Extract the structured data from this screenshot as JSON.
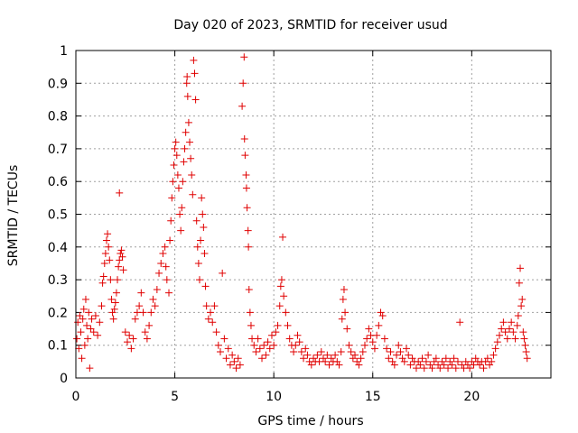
{
  "chart_data": {
    "type": "scatter",
    "title": "Day 020 of 2023, SRMTID for receiver usud",
    "xlabel": "GPS time / hours",
    "ylabel": "SRMTID / TECUs",
    "xlim": [
      0,
      24
    ],
    "ylim": [
      0,
      1
    ],
    "x_ticks": [
      0,
      5,
      10,
      15,
      20
    ],
    "y_ticks": [
      0,
      0.1,
      0.2,
      0.3,
      0.4,
      0.5,
      0.6,
      0.7,
      0.8,
      0.9,
      1
    ],
    "x_tick_labels": [
      "0",
      "5",
      "10",
      "15",
      "20"
    ],
    "y_tick_labels": [
      "0",
      "0.1",
      "0.2",
      "0.3",
      "0.4",
      "0.5",
      "0.6",
      "0.7",
      "0.8",
      "0.9",
      "1"
    ],
    "grid": true,
    "marker": "+",
    "marker_color": "#e00000",
    "series": [
      {
        "name": "SRMTID",
        "points": [
          [
            0.05,
            0.12
          ],
          [
            0.1,
            0.17
          ],
          [
            0.15,
            0.09
          ],
          [
            0.2,
            0.19
          ],
          [
            0.25,
            0.14
          ],
          [
            0.3,
            0.06
          ],
          [
            0.35,
            0.18
          ],
          [
            0.4,
            0.21
          ],
          [
            0.45,
            0.1
          ],
          [
            0.5,
            0.24
          ],
          [
            0.55,
            0.16
          ],
          [
            0.6,
            0.12
          ],
          [
            0.65,
            0.2
          ],
          [
            0.7,
            0.03
          ],
          [
            0.75,
            0.15
          ],
          [
            0.8,
            0.18
          ],
          [
            0.9,
            0.14
          ],
          [
            1.0,
            0.19
          ],
          [
            1.1,
            0.13
          ],
          [
            1.2,
            0.17
          ],
          [
            1.3,
            0.22
          ],
          [
            1.35,
            0.29
          ],
          [
            1.4,
            0.31
          ],
          [
            1.45,
            0.35
          ],
          [
            1.5,
            0.38
          ],
          [
            1.55,
            0.42
          ],
          [
            1.6,
            0.44
          ],
          [
            1.65,
            0.4
          ],
          [
            1.7,
            0.36
          ],
          [
            1.75,
            0.3
          ],
          [
            1.8,
            0.24
          ],
          [
            1.85,
            0.2
          ],
          [
            1.9,
            0.18
          ],
          [
            1.95,
            0.21
          ],
          [
            2.0,
            0.23
          ],
          [
            2.05,
            0.26
          ],
          [
            2.1,
            0.3
          ],
          [
            2.15,
            0.34
          ],
          [
            2.2,
            0.36
          ],
          [
            2.25,
            0.38
          ],
          [
            2.3,
            0.39
          ],
          [
            2.35,
            0.37
          ],
          [
            2.4,
            0.33
          ],
          [
            2.2,
            0.565
          ],
          [
            2.5,
            0.14
          ],
          [
            2.6,
            0.11
          ],
          [
            2.7,
            0.13
          ],
          [
            2.8,
            0.09
          ],
          [
            2.9,
            0.12
          ],
          [
            3.0,
            0.18
          ],
          [
            3.1,
            0.2
          ],
          [
            3.2,
            0.22
          ],
          [
            3.3,
            0.26
          ],
          [
            3.4,
            0.2
          ],
          [
            3.5,
            0.14
          ],
          [
            3.6,
            0.12
          ],
          [
            3.7,
            0.16
          ],
          [
            3.8,
            0.2
          ],
          [
            3.9,
            0.24
          ],
          [
            4.0,
            0.22
          ],
          [
            4.1,
            0.27
          ],
          [
            4.2,
            0.32
          ],
          [
            4.3,
            0.35
          ],
          [
            4.4,
            0.38
          ],
          [
            4.5,
            0.4
          ],
          [
            4.55,
            0.34
          ],
          [
            4.6,
            0.3
          ],
          [
            4.7,
            0.26
          ],
          [
            4.75,
            0.42
          ],
          [
            4.8,
            0.48
          ],
          [
            4.85,
            0.55
          ],
          [
            4.9,
            0.6
          ],
          [
            4.95,
            0.65
          ],
          [
            5.0,
            0.7
          ],
          [
            5.05,
            0.72
          ],
          [
            5.1,
            0.68
          ],
          [
            5.15,
            0.62
          ],
          [
            5.2,
            0.58
          ],
          [
            5.25,
            0.5
          ],
          [
            5.3,
            0.45
          ],
          [
            5.35,
            0.52
          ],
          [
            5.4,
            0.6
          ],
          [
            5.45,
            0.66
          ],
          [
            5.5,
            0.7
          ],
          [
            5.55,
            0.75
          ],
          [
            5.6,
            0.9
          ],
          [
            5.62,
            0.92
          ],
          [
            5.65,
            0.86
          ],
          [
            5.7,
            0.78
          ],
          [
            5.75,
            0.72
          ],
          [
            5.8,
            0.67
          ],
          [
            5.85,
            0.62
          ],
          [
            5.9,
            0.56
          ],
          [
            5.95,
            0.97
          ],
          [
            6.0,
            0.93
          ],
          [
            6.05,
            0.85
          ],
          [
            6.1,
            0.48
          ],
          [
            6.15,
            0.4
          ],
          [
            6.2,
            0.35
          ],
          [
            6.25,
            0.3
          ],
          [
            6.3,
            0.42
          ],
          [
            6.35,
            0.55
          ],
          [
            6.4,
            0.5
          ],
          [
            6.45,
            0.46
          ],
          [
            6.5,
            0.38
          ],
          [
            6.55,
            0.28
          ],
          [
            6.6,
            0.22
          ],
          [
            6.7,
            0.18
          ],
          [
            6.8,
            0.2
          ],
          [
            6.9,
            0.17
          ],
          [
            7.0,
            0.22
          ],
          [
            7.1,
            0.14
          ],
          [
            7.2,
            0.1
          ],
          [
            7.3,
            0.08
          ],
          [
            7.4,
            0.32
          ],
          [
            7.5,
            0.12
          ],
          [
            7.6,
            0.06
          ],
          [
            7.7,
            0.09
          ],
          [
            7.8,
            0.04
          ],
          [
            7.9,
            0.07
          ],
          [
            8.0,
            0.05
          ],
          [
            8.1,
            0.03
          ],
          [
            8.2,
            0.06
          ],
          [
            8.3,
            0.04
          ],
          [
            8.4,
            0.83
          ],
          [
            8.45,
            0.9
          ],
          [
            8.5,
            0.98
          ],
          [
            8.52,
            0.73
          ],
          [
            8.55,
            0.68
          ],
          [
            8.6,
            0.62
          ],
          [
            8.62,
            0.58
          ],
          [
            8.65,
            0.52
          ],
          [
            8.7,
            0.45
          ],
          [
            8.72,
            0.4
          ],
          [
            8.75,
            0.27
          ],
          [
            8.8,
            0.2
          ],
          [
            8.85,
            0.16
          ],
          [
            8.9,
            0.12
          ],
          [
            9.0,
            0.1
          ],
          [
            9.1,
            0.08
          ],
          [
            9.2,
            0.12
          ],
          [
            9.3,
            0.09
          ],
          [
            9.4,
            0.06
          ],
          [
            9.5,
            0.1
          ],
          [
            9.6,
            0.07
          ],
          [
            9.7,
            0.11
          ],
          [
            9.8,
            0.09
          ],
          [
            9.9,
            0.13
          ],
          [
            10.0,
            0.1
          ],
          [
            10.1,
            0.14
          ],
          [
            10.2,
            0.16
          ],
          [
            10.3,
            0.22
          ],
          [
            10.35,
            0.28
          ],
          [
            10.4,
            0.3
          ],
          [
            10.45,
            0.43
          ],
          [
            10.5,
            0.25
          ],
          [
            10.6,
            0.2
          ],
          [
            10.7,
            0.16
          ],
          [
            10.8,
            0.12
          ],
          [
            10.9,
            0.1
          ],
          [
            11.0,
            0.08
          ],
          [
            11.1,
            0.1
          ],
          [
            11.2,
            0.13
          ],
          [
            11.3,
            0.11
          ],
          [
            11.4,
            0.08
          ],
          [
            11.5,
            0.06
          ],
          [
            11.6,
            0.09
          ],
          [
            11.7,
            0.07
          ],
          [
            11.8,
            0.05
          ],
          [
            11.9,
            0.04
          ],
          [
            12.0,
            0.06
          ],
          [
            12.1,
            0.05
          ],
          [
            12.2,
            0.07
          ],
          [
            12.3,
            0.05
          ],
          [
            12.4,
            0.08
          ],
          [
            12.5,
            0.06
          ],
          [
            12.6,
            0.05
          ],
          [
            12.7,
            0.07
          ],
          [
            12.8,
            0.04
          ],
          [
            12.9,
            0.06
          ],
          [
            13.0,
            0.05
          ],
          [
            13.1,
            0.07
          ],
          [
            13.2,
            0.05
          ],
          [
            13.3,
            0.04
          ],
          [
            13.4,
            0.08
          ],
          [
            13.45,
            0.18
          ],
          [
            13.5,
            0.24
          ],
          [
            13.55,
            0.27
          ],
          [
            13.6,
            0.2
          ],
          [
            13.7,
            0.15
          ],
          [
            13.8,
            0.1
          ],
          [
            13.9,
            0.08
          ],
          [
            14.0,
            0.06
          ],
          [
            14.1,
            0.07
          ],
          [
            14.2,
            0.05
          ],
          [
            14.3,
            0.04
          ],
          [
            14.4,
            0.06
          ],
          [
            14.5,
            0.08
          ],
          [
            14.6,
            0.1
          ],
          [
            14.7,
            0.12
          ],
          [
            14.8,
            0.15
          ],
          [
            14.9,
            0.13
          ],
          [
            15.0,
            0.11
          ],
          [
            15.1,
            0.09
          ],
          [
            15.2,
            0.13
          ],
          [
            15.3,
            0.16
          ],
          [
            15.4,
            0.2
          ],
          [
            15.5,
            0.19
          ],
          [
            15.6,
            0.12
          ],
          [
            15.7,
            0.09
          ],
          [
            15.8,
            0.06
          ],
          [
            15.9,
            0.08
          ],
          [
            16.0,
            0.05
          ],
          [
            16.1,
            0.04
          ],
          [
            16.2,
            0.07
          ],
          [
            16.3,
            0.1
          ],
          [
            16.4,
            0.08
          ],
          [
            16.5,
            0.06
          ],
          [
            16.6,
            0.05
          ],
          [
            16.7,
            0.09
          ],
          [
            16.8,
            0.07
          ],
          [
            16.9,
            0.04
          ],
          [
            17.0,
            0.06
          ],
          [
            17.1,
            0.05
          ],
          [
            17.2,
            0.03
          ],
          [
            17.3,
            0.05
          ],
          [
            17.4,
            0.04
          ],
          [
            17.5,
            0.06
          ],
          [
            17.6,
            0.03
          ],
          [
            17.7,
            0.05
          ],
          [
            17.8,
            0.07
          ],
          [
            17.9,
            0.04
          ],
          [
            18.0,
            0.03
          ],
          [
            18.1,
            0.05
          ],
          [
            18.2,
            0.06
          ],
          [
            18.3,
            0.04
          ],
          [
            18.4,
            0.03
          ],
          [
            18.5,
            0.05
          ],
          [
            18.6,
            0.04
          ],
          [
            18.7,
            0.06
          ],
          [
            18.8,
            0.03
          ],
          [
            18.9,
            0.05
          ],
          [
            19.0,
            0.04
          ],
          [
            19.1,
            0.06
          ],
          [
            19.2,
            0.03
          ],
          [
            19.3,
            0.05
          ],
          [
            19.4,
            0.17
          ],
          [
            19.5,
            0.04
          ],
          [
            19.6,
            0.03
          ],
          [
            19.7,
            0.05
          ],
          [
            19.8,
            0.04
          ],
          [
            19.9,
            0.03
          ],
          [
            20.0,
            0.05
          ],
          [
            20.1,
            0.04
          ],
          [
            20.2,
            0.06
          ],
          [
            20.3,
            0.05
          ],
          [
            20.4,
            0.04
          ],
          [
            20.5,
            0.05
          ],
          [
            20.6,
            0.03
          ],
          [
            20.7,
            0.05
          ],
          [
            20.8,
            0.06
          ],
          [
            20.9,
            0.04
          ],
          [
            21.0,
            0.05
          ],
          [
            21.1,
            0.07
          ],
          [
            21.2,
            0.09
          ],
          [
            21.3,
            0.11
          ],
          [
            21.4,
            0.13
          ],
          [
            21.5,
            0.15
          ],
          [
            21.6,
            0.17
          ],
          [
            21.7,
            0.14
          ],
          [
            21.8,
            0.12
          ],
          [
            21.9,
            0.15
          ],
          [
            22.0,
            0.17
          ],
          [
            22.1,
            0.14
          ],
          [
            22.2,
            0.12
          ],
          [
            22.3,
            0.16
          ],
          [
            22.35,
            0.19
          ],
          [
            22.4,
            0.29
          ],
          [
            22.45,
            0.335
          ],
          [
            22.5,
            0.22
          ],
          [
            22.55,
            0.24
          ],
          [
            22.6,
            0.14
          ],
          [
            22.65,
            0.12
          ],
          [
            22.7,
            0.1
          ],
          [
            22.75,
            0.08
          ],
          [
            22.8,
            0.06
          ]
        ]
      }
    ]
  }
}
